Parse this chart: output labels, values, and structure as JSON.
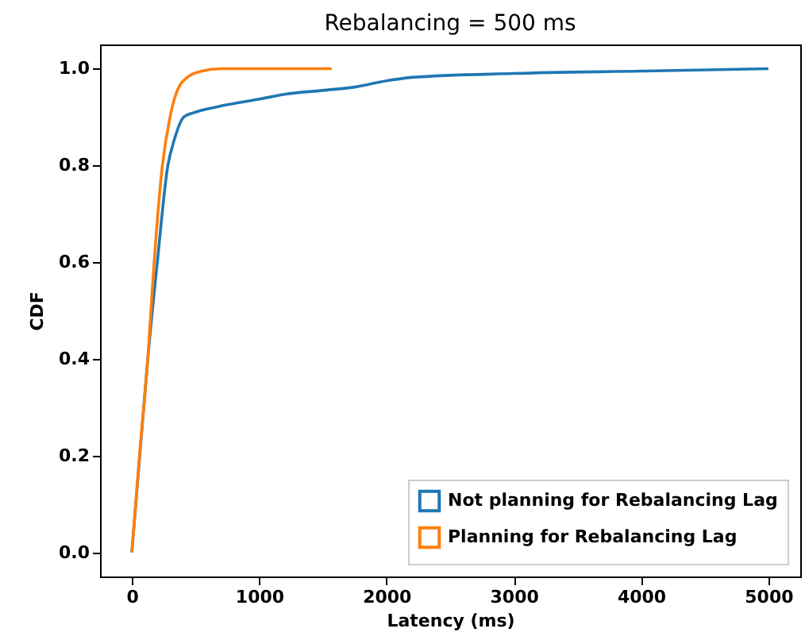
{
  "chart_data": {
    "type": "line",
    "title": "Rebalancing = 500 ms",
    "xlabel": "Latency (ms)",
    "ylabel": "CDF",
    "xlim": [
      -250,
      5250
    ],
    "xticks": [
      0,
      1000,
      2000,
      3000,
      4000,
      5000
    ],
    "ylim": [
      -0.05,
      1.05
    ],
    "yticks": [
      {
        "value": 0,
        "label": "0.0"
      },
      0.2,
      0.4,
      0.6,
      0.8,
      {
        "value": 1,
        "label": "1.0"
      }
    ],
    "grid": false,
    "legend": "bottom right",
    "line_style": "solid",
    "marker": "none",
    "series": [
      {
        "name": "Not planning for Rebalancing Lag",
        "color": "#1f77b4",
        "x": [
          0,
          62,
          125,
          200,
          283,
          330,
          408,
          500,
          650,
          850,
          1000,
          1200,
          1500,
          1750,
          2000,
          2200,
          3000,
          4000,
          5000
        ],
        "values": [
          0,
          0.2,
          0.4,
          0.6,
          0.8,
          0.85,
          0.9,
          0.91,
          0.92,
          0.93,
          0.937,
          0.947,
          0.955,
          0.962,
          0.975,
          0.982,
          0.99,
          0.995,
          1.0
        ]
      },
      {
        "name": "Planning for Rebalancing Lag",
        "color": "#ff7f0e",
        "x": [
          0,
          60,
          125,
          175,
          240,
          300,
          350,
          450,
          550,
          700,
          1570
        ],
        "values": [
          0,
          0.2,
          0.4,
          0.6,
          0.8,
          0.9,
          0.95,
          0.985,
          0.995,
          1.0,
          1.0
        ]
      }
    ]
  }
}
